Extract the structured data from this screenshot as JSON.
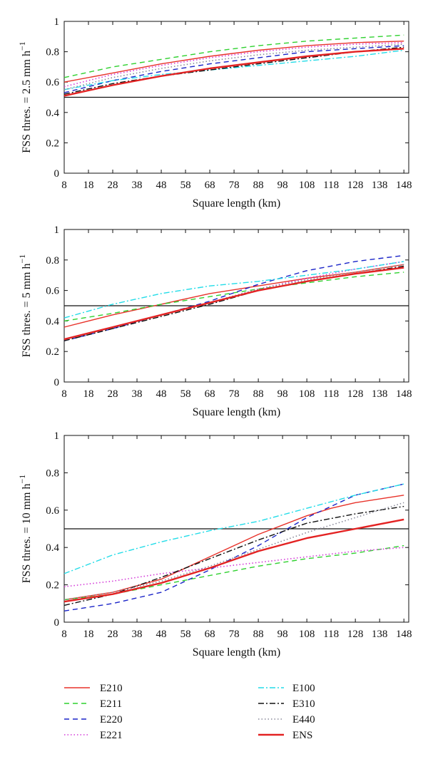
{
  "chart_data": [
    {
      "type": "line",
      "xlabel": "Square length (km)",
      "ylabel_main": "FSS thres. = 2.5 mm h",
      "ylabel_sup": "−1",
      "xlim": [
        8,
        150
      ],
      "ylim": [
        0,
        1
      ],
      "xticks": [
        8,
        18,
        28,
        38,
        48,
        58,
        68,
        78,
        88,
        98,
        108,
        118,
        128,
        138,
        148
      ],
      "yticks": [
        0,
        0.2,
        0.4,
        0.6,
        0.8,
        1
      ],
      "ytick_labels": [
        "0",
        "0.2",
        "0.4",
        "0.6",
        "0.8",
        "1"
      ],
      "threshold": 0.5,
      "series": [
        {
          "name": "E210",
          "x": [
            8,
            28,
            48,
            68,
            88,
            108,
            128,
            148
          ],
          "y": [
            0.6,
            0.66,
            0.72,
            0.77,
            0.81,
            0.84,
            0.86,
            0.87
          ]
        },
        {
          "name": "E211",
          "x": [
            8,
            28,
            48,
            68,
            88,
            108,
            128,
            148
          ],
          "y": [
            0.63,
            0.7,
            0.75,
            0.8,
            0.84,
            0.87,
            0.89,
            0.91
          ]
        },
        {
          "name": "E220",
          "x": [
            8,
            28,
            48,
            68,
            88,
            108,
            128,
            148
          ],
          "y": [
            0.53,
            0.61,
            0.67,
            0.72,
            0.76,
            0.8,
            0.82,
            0.84
          ]
        },
        {
          "name": "E221",
          "x": [
            8,
            28,
            48,
            68,
            88,
            108,
            128,
            148
          ],
          "y": [
            0.57,
            0.65,
            0.71,
            0.76,
            0.8,
            0.83,
            0.85,
            0.86
          ]
        },
        {
          "name": "E100",
          "x": [
            8,
            28,
            48,
            68,
            88,
            108,
            128,
            148
          ],
          "y": [
            0.55,
            0.61,
            0.65,
            0.68,
            0.71,
            0.74,
            0.77,
            0.81
          ]
        },
        {
          "name": "E310",
          "x": [
            8,
            28,
            48,
            68,
            88,
            108,
            128,
            148
          ],
          "y": [
            0.52,
            0.59,
            0.64,
            0.68,
            0.72,
            0.76,
            0.8,
            0.83
          ]
        },
        {
          "name": "E440",
          "x": [
            8,
            28,
            48,
            68,
            88,
            108,
            128,
            148
          ],
          "y": [
            0.55,
            0.63,
            0.69,
            0.74,
            0.78,
            0.81,
            0.83,
            0.85
          ]
        },
        {
          "name": "ENS",
          "x": [
            8,
            28,
            48,
            68,
            88,
            108,
            128,
            148
          ],
          "y": [
            0.51,
            0.58,
            0.64,
            0.69,
            0.73,
            0.77,
            0.8,
            0.82
          ]
        }
      ]
    },
    {
      "type": "line",
      "xlabel": "Square length (km)",
      "ylabel_main": "FSS thres. = 5 mm h",
      "ylabel_sup": "−1",
      "xlim": [
        8,
        150
      ],
      "ylim": [
        0,
        1
      ],
      "xticks": [
        8,
        18,
        28,
        38,
        48,
        58,
        68,
        78,
        88,
        98,
        108,
        118,
        128,
        138,
        148
      ],
      "yticks": [
        0,
        0.2,
        0.4,
        0.6,
        0.8,
        1
      ],
      "ytick_labels": [
        "0",
        "0.2",
        "0.4",
        "0.6",
        "0.8",
        "1"
      ],
      "threshold": 0.5,
      "series": [
        {
          "name": "E210",
          "x": [
            8,
            28,
            48,
            68,
            88,
            108,
            128,
            148
          ],
          "y": [
            0.36,
            0.44,
            0.51,
            0.58,
            0.63,
            0.68,
            0.72,
            0.77
          ]
        },
        {
          "name": "E211",
          "x": [
            8,
            28,
            48,
            68,
            88,
            108,
            128,
            148
          ],
          "y": [
            0.4,
            0.45,
            0.51,
            0.56,
            0.61,
            0.65,
            0.69,
            0.72
          ]
        },
        {
          "name": "E220",
          "x": [
            8,
            28,
            48,
            68,
            88,
            108,
            128,
            148
          ],
          "y": [
            0.27,
            0.35,
            0.44,
            0.53,
            0.64,
            0.73,
            0.79,
            0.83
          ]
        },
        {
          "name": "E221",
          "x": [
            8,
            28,
            48,
            68,
            88,
            108,
            128,
            148
          ],
          "y": [
            0.28,
            0.36,
            0.44,
            0.52,
            0.61,
            0.68,
            0.74,
            0.79
          ]
        },
        {
          "name": "E100",
          "x": [
            8,
            28,
            48,
            68,
            88,
            108,
            128,
            148
          ],
          "y": [
            0.42,
            0.51,
            0.58,
            0.63,
            0.66,
            0.7,
            0.74,
            0.79
          ]
        },
        {
          "name": "E310",
          "x": [
            8,
            28,
            48,
            68,
            88,
            108,
            128,
            148
          ],
          "y": [
            0.27,
            0.35,
            0.43,
            0.51,
            0.6,
            0.66,
            0.71,
            0.76
          ]
        },
        {
          "name": "E440",
          "x": [
            8,
            28,
            48,
            68,
            88,
            108,
            128,
            148
          ],
          "y": [
            0.28,
            0.36,
            0.44,
            0.52,
            0.61,
            0.67,
            0.72,
            0.77
          ]
        },
        {
          "name": "ENS",
          "x": [
            8,
            28,
            48,
            68,
            88,
            108,
            128,
            148
          ],
          "y": [
            0.28,
            0.36,
            0.44,
            0.52,
            0.6,
            0.66,
            0.71,
            0.75
          ]
        }
      ]
    },
    {
      "type": "line",
      "xlabel": "Square length (km)",
      "ylabel_main": "FSS thres. = 10 mm h",
      "ylabel_sup": "−1",
      "xlim": [
        8,
        150
      ],
      "ylim": [
        0,
        1
      ],
      "xticks": [
        8,
        18,
        28,
        38,
        48,
        58,
        68,
        78,
        88,
        98,
        108,
        118,
        128,
        138,
        148
      ],
      "yticks": [
        0,
        0.2,
        0.4,
        0.6,
        0.8,
        1
      ],
      "ytick_labels": [
        "0",
        "0.2",
        "0.4",
        "0.6",
        "0.8",
        "1"
      ],
      "threshold": 0.5,
      "series": [
        {
          "name": "E210",
          "x": [
            8,
            28,
            48,
            68,
            88,
            108,
            118,
            128,
            138,
            148
          ],
          "y": [
            0.12,
            0.16,
            0.23,
            0.35,
            0.47,
            0.57,
            0.61,
            0.64,
            0.66,
            0.68
          ]
        },
        {
          "name": "E211",
          "x": [
            8,
            28,
            48,
            68,
            88,
            108,
            128,
            148
          ],
          "y": [
            0.12,
            0.15,
            0.2,
            0.25,
            0.3,
            0.34,
            0.37,
            0.41
          ]
        },
        {
          "name": "E220",
          "x": [
            8,
            28,
            48,
            68,
            88,
            108,
            128,
            148
          ],
          "y": [
            0.06,
            0.1,
            0.16,
            0.28,
            0.41,
            0.56,
            0.68,
            0.74
          ]
        },
        {
          "name": "E221",
          "x": [
            8,
            28,
            48,
            68,
            88,
            108,
            128,
            148
          ],
          "y": [
            0.19,
            0.22,
            0.26,
            0.29,
            0.32,
            0.35,
            0.38,
            0.4
          ]
        },
        {
          "name": "E100",
          "x": [
            8,
            28,
            48,
            68,
            88,
            108,
            128,
            148
          ],
          "y": [
            0.26,
            0.36,
            0.43,
            0.49,
            0.54,
            0.61,
            0.68,
            0.74
          ]
        },
        {
          "name": "E310",
          "x": [
            8,
            28,
            48,
            68,
            88,
            108,
            128,
            148
          ],
          "y": [
            0.09,
            0.15,
            0.24,
            0.34,
            0.44,
            0.53,
            0.58,
            0.62
          ]
        },
        {
          "name": "E440",
          "x": [
            8,
            28,
            48,
            68,
            88,
            108,
            128,
            148
          ],
          "y": [
            0.12,
            0.16,
            0.22,
            0.3,
            0.39,
            0.48,
            0.56,
            0.64
          ]
        },
        {
          "name": "ENS",
          "x": [
            8,
            28,
            48,
            68,
            88,
            108,
            128,
            148
          ],
          "y": [
            0.11,
            0.15,
            0.21,
            0.29,
            0.38,
            0.45,
            0.5,
            0.55
          ]
        }
      ]
    }
  ],
  "legend": {
    "left": [
      "E210",
      "E211",
      "E220",
      "E221"
    ],
    "right": [
      "E100",
      "E310",
      "E440",
      "ENS"
    ]
  },
  "series_styles": {
    "E210": {
      "color": "#e8322a",
      "dash": "",
      "width": 1.4
    },
    "E211": {
      "color": "#2fd12f",
      "dash": "7,5",
      "width": 1.4
    },
    "E220": {
      "color": "#1a24c8",
      "dash": "7,5",
      "width": 1.4
    },
    "E221": {
      "color": "#d43ad8",
      "dash": "1.5,3",
      "width": 1.6
    },
    "E100": {
      "color": "#22dce8",
      "dash": "8,3,2,3",
      "width": 1.4
    },
    "E310": {
      "color": "#111111",
      "dash": "8,3,2,3",
      "width": 1.4
    },
    "E440": {
      "color": "#8a8a9a",
      "dash": "1.5,3",
      "width": 1.6
    },
    "ENS": {
      "color": "#e32222",
      "dash": "",
      "width": 2.4
    }
  }
}
